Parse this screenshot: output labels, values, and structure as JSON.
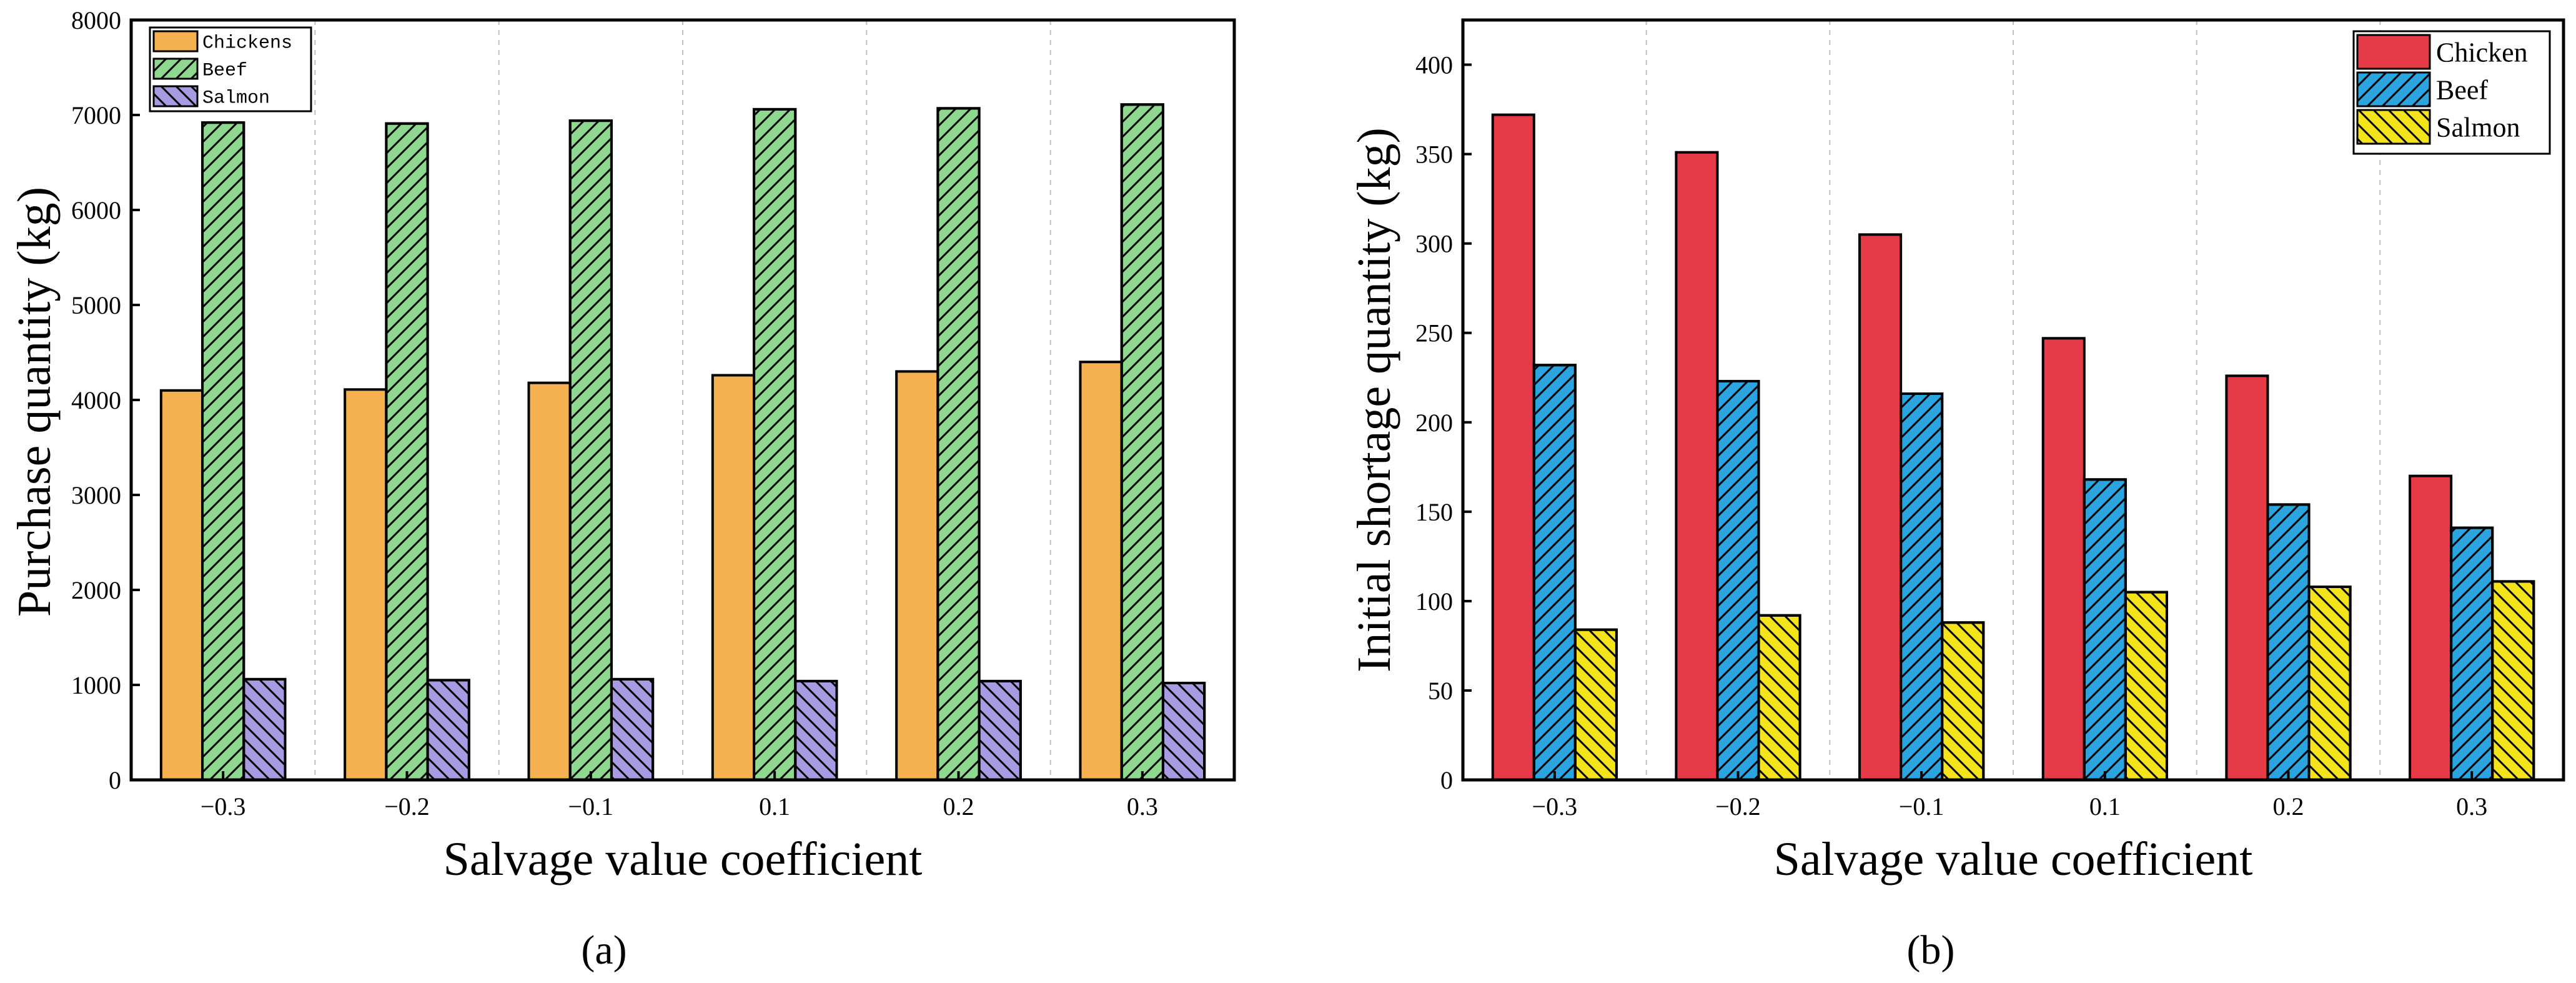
{
  "chart_data": [
    {
      "type": "bar",
      "panel_label": "(a)",
      "title": "",
      "xlabel": "Salvage value coefficient",
      "ylabel": "Purchase quantity (kg)",
      "categories": [
        "−0.3",
        "−0.2",
        "−0.1",
        "0.1",
        "0.2",
        "0.3"
      ],
      "ylim": [
        0,
        8000
      ],
      "yticks": [
        0,
        1000,
        2000,
        3000,
        4000,
        5000,
        6000,
        7000,
        8000
      ],
      "grid": "vertical dashed",
      "legend": "top-left",
      "series": [
        {
          "name": "Chickens",
          "color": "#F5B14F",
          "hatch": "none",
          "values": [
            4100,
            4110,
            4180,
            4260,
            4300,
            4400
          ]
        },
        {
          "name": "Beef",
          "color": "#8FD88F",
          "hatch": "forward",
          "values": [
            6920,
            6910,
            6940,
            7060,
            7070,
            7110
          ]
        },
        {
          "name": "Salmon",
          "color": "#A99BE3",
          "hatch": "back",
          "values": [
            1060,
            1050,
            1060,
            1040,
            1040,
            1020
          ]
        }
      ]
    },
    {
      "type": "bar",
      "panel_label": "(b)",
      "title": "",
      "xlabel": "Salvage value coefficient",
      "ylabel": "Initial shortage quantity (kg)",
      "categories": [
        "−0.3",
        "−0.2",
        "−0.1",
        "0.1",
        "0.2",
        "0.3"
      ],
      "ylim": [
        0,
        425
      ],
      "yticks": [
        0,
        50,
        100,
        150,
        200,
        250,
        300,
        350,
        400
      ],
      "grid": "vertical dashed",
      "legend": "top-right",
      "series": [
        {
          "name": "Chicken",
          "color": "#E63A46",
          "hatch": "none",
          "values": [
            372,
            351,
            305,
            247,
            226,
            170
          ]
        },
        {
          "name": "Beef",
          "color": "#2BA3DE",
          "hatch": "forward",
          "values": [
            232,
            223,
            216,
            168,
            154,
            141
          ]
        },
        {
          "name": "Salmon",
          "color": "#F4E21A",
          "hatch": "back",
          "values": [
            84,
            92,
            88,
            105,
            108,
            111
          ]
        }
      ]
    }
  ]
}
